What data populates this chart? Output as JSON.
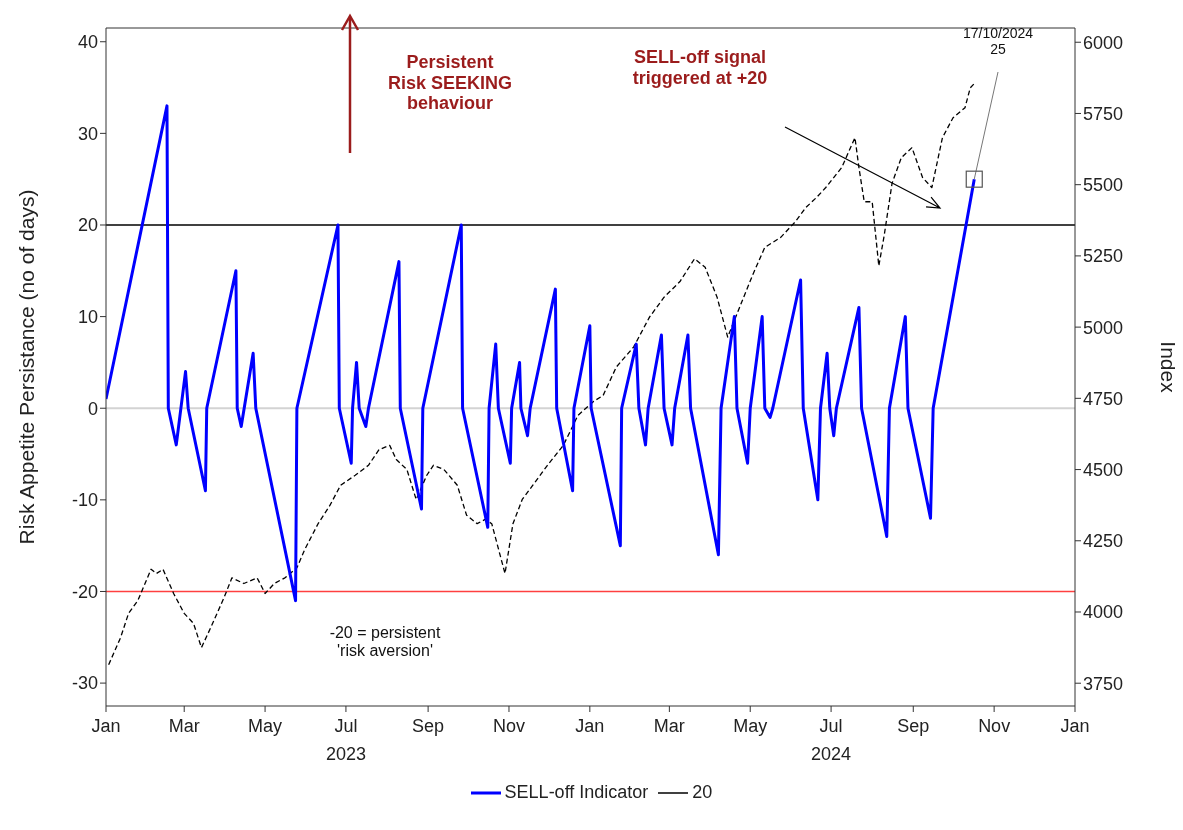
{
  "chart_data": {
    "type": "line",
    "ylabel": "Risk Appetite Persistance (no of days)",
    "y2label": "Index",
    "xlim": [
      "2023-01-01",
      "2025-01-01"
    ],
    "xticks": [
      {
        "value": "2023-01-01",
        "label": "Jan"
      },
      {
        "value": "2023-03-01",
        "label": "Mar"
      },
      {
        "value": "2023-05-01",
        "label": "May"
      },
      {
        "value": "2023-07-01",
        "label": "Jul\n2023"
      },
      {
        "value": "2023-09-01",
        "label": "Sep"
      },
      {
        "value": "2023-11-01",
        "label": "Nov"
      },
      {
        "value": "2024-01-01",
        "label": "Jan"
      },
      {
        "value": "2024-03-01",
        "label": "Mar"
      },
      {
        "value": "2024-05-01",
        "label": "May"
      },
      {
        "value": "2024-07-01",
        "label": "Jul\n2024"
      },
      {
        "value": "2024-09-01",
        "label": "Sep"
      },
      {
        "value": "2024-11-01",
        "label": "Nov"
      },
      {
        "value": "2025-01-01",
        "label": "Jan"
      }
    ],
    "ylim": [
      -32.5,
      41.5
    ],
    "yticks": [
      -30,
      -20,
      -10,
      0,
      10,
      20,
      30,
      40
    ],
    "y2lim": [
      3670,
      6050
    ],
    "y2ticks": [
      3750,
      4000,
      4250,
      4500,
      4750,
      5000,
      5250,
      5500,
      5750,
      6000
    ],
    "marker": "none",
    "legend": "bottom",
    "series": [
      {
        "axis": "y2",
        "color": "#000000",
        "line_style": "dashed",
        "x": [
          "2023-01-03",
          "2023-01-12",
          "2023-01-18",
          "2023-01-25",
          "2023-02-04",
          "2023-02-08",
          "2023-02-13",
          "2023-02-21",
          "2023-03-01",
          "2023-03-08",
          "2023-03-14",
          "2023-03-21",
          "2023-03-31",
          "2023-04-06",
          "2023-04-15",
          "2023-04-25",
          "2023-05-01",
          "2023-05-08",
          "2023-05-16",
          "2023-05-25",
          "2023-05-31",
          "2023-06-10",
          "2023-06-19",
          "2023-06-27",
          "2023-07-08",
          "2023-07-18",
          "2023-07-26",
          "2023-08-03",
          "2023-08-08",
          "2023-08-16",
          "2023-08-23",
          "2023-08-31",
          "2023-09-05",
          "2023-09-13",
          "2023-09-23",
          "2023-09-30",
          "2023-10-08",
          "2023-10-14",
          "2023-10-19",
          "2023-10-25",
          "2023-10-29",
          "2023-11-04",
          "2023-11-11",
          "2023-11-19",
          "2023-11-30",
          "2023-12-12",
          "2023-12-23",
          "2024-01-04",
          "2024-01-11",
          "2024-01-21",
          "2024-02-03",
          "2024-02-15",
          "2024-02-26",
          "2024-03-09",
          "2024-03-20",
          "2024-03-28",
          "2024-04-06",
          "2024-04-14",
          "2024-04-23",
          "2024-05-03",
          "2024-05-12",
          "2024-05-24",
          "2024-06-04",
          "2024-06-12",
          "2024-06-20",
          "2024-06-27",
          "2024-07-09",
          "2024-07-19",
          "2024-07-22",
          "2024-07-26",
          "2024-08-01",
          "2024-08-06",
          "2024-08-10",
          "2024-08-16",
          "2024-08-23",
          "2024-08-31",
          "2024-09-08",
          "2024-09-15",
          "2024-09-23",
          "2024-10-01",
          "2024-10-10",
          "2024-10-14",
          "2024-10-17"
        ],
        "values": [
          3815,
          3910,
          3995,
          4040,
          4150,
          4135,
          4150,
          4065,
          3995,
          3960,
          3875,
          3945,
          4050,
          4120,
          4100,
          4120,
          4065,
          4100,
          4120,
          4155,
          4220,
          4310,
          4375,
          4445,
          4480,
          4515,
          4570,
          4585,
          4535,
          4500,
          4395,
          4480,
          4515,
          4500,
          4445,
          4340,
          4310,
          4325,
          4310,
          4205,
          4135,
          4310,
          4395,
          4445,
          4515,
          4585,
          4690,
          4740,
          4760,
          4860,
          4930,
          5035,
          5105,
          5160,
          5240,
          5210,
          5105,
          4965,
          5070,
          5185,
          5280,
          5315,
          5370,
          5420,
          5455,
          5490,
          5560,
          5665,
          5560,
          5440,
          5440,
          5215,
          5320,
          5505,
          5595,
          5630,
          5525,
          5490,
          5665,
          5735,
          5770,
          5840,
          5855
        ]
      },
      {
        "name": "SELL-off Indicator",
        "color": "#0000ff",
        "line_style": "solid",
        "x": [
          "2023-01-01",
          "2023-02-16",
          "2023-02-17",
          "2023-02-23",
          "2023-03-02",
          "2023-03-04",
          "2023-03-17",
          "2023-03-18",
          "2023-04-09",
          "2023-04-10",
          "2023-04-13",
          "2023-04-22",
          "2023-04-24",
          "2023-05-24",
          "2023-05-25",
          "2023-06-25",
          "2023-06-26",
          "2023-07-05",
          "2023-07-06",
          "2023-07-09",
          "2023-07-11",
          "2023-07-16",
          "2023-07-18",
          "2023-08-10",
          "2023-08-11",
          "2023-08-27",
          "2023-08-28",
          "2023-09-26",
          "2023-09-27",
          "2023-10-16",
          "2023-10-17",
          "2023-10-22",
          "2023-10-24",
          "2023-11-02",
          "2023-11-03",
          "2023-11-09",
          "2023-11-10",
          "2023-11-15",
          "2023-11-17",
          "2023-12-06",
          "2023-12-07",
          "2023-12-19",
          "2023-12-20",
          "2024-01-01",
          "2024-01-02",
          "2024-01-24",
          "2024-01-25",
          "2024-02-05",
          "2024-02-07",
          "2024-02-12",
          "2024-02-14",
          "2024-02-24",
          "2024-02-26",
          "2024-03-03",
          "2024-03-05",
          "2024-03-15",
          "2024-03-17",
          "2024-04-07",
          "2024-04-09",
          "2024-04-19",
          "2024-04-21",
          "2024-04-29",
          "2024-05-01",
          "2024-05-10",
          "2024-05-12",
          "2024-05-16",
          "2024-05-18",
          "2024-06-08",
          "2024-06-10",
          "2024-06-21",
          "2024-06-23",
          "2024-06-28",
          "2024-06-30",
          "2024-07-03",
          "2024-07-05",
          "2024-07-22",
          "2024-07-24",
          "2024-08-12",
          "2024-08-14",
          "2024-08-26",
          "2024-08-28",
          "2024-09-14",
          "2024-09-16",
          "2024-10-17"
        ],
        "values": [
          1,
          33,
          0,
          -4,
          4,
          0,
          -9,
          0,
          15,
          0,
          -2,
          6,
          0,
          -21,
          0,
          20,
          0,
          -6,
          0,
          5,
          0,
          -2,
          0,
          16,
          0,
          -11,
          0,
          20,
          0,
          -13,
          0,
          7,
          0,
          -6,
          0,
          5,
          0,
          -3,
          0,
          13,
          0,
          -9,
          0,
          9,
          0,
          -15,
          0,
          7,
          0,
          -4,
          0,
          8,
          0,
          -4,
          0,
          8,
          0,
          -16,
          0,
          10,
          0,
          -6,
          0,
          10,
          0,
          -1,
          0,
          14,
          0,
          -10,
          0,
          6,
          0,
          -3,
          0,
          11,
          0,
          -14,
          0,
          10,
          0,
          -12,
          0,
          25
        ]
      }
    ],
    "ref_lines": [
      {
        "axis": "y",
        "value": 0,
        "color": "#d3d3d3"
      },
      {
        "axis": "y",
        "value": 20,
        "color": "#000000",
        "label": "20"
      },
      {
        "axis": "y",
        "value": -20,
        "color": "#ff4040"
      }
    ],
    "annotations": [
      "Persistent\nRisk SEEKING\nbehaviour",
      "SELL-off signal\ntriggered at +20",
      "-20 = persistent\n'risk aversion'",
      {
        "text": "17/10/2024\n25",
        "x": "2024-10-17",
        "y": 25
      }
    ]
  }
}
